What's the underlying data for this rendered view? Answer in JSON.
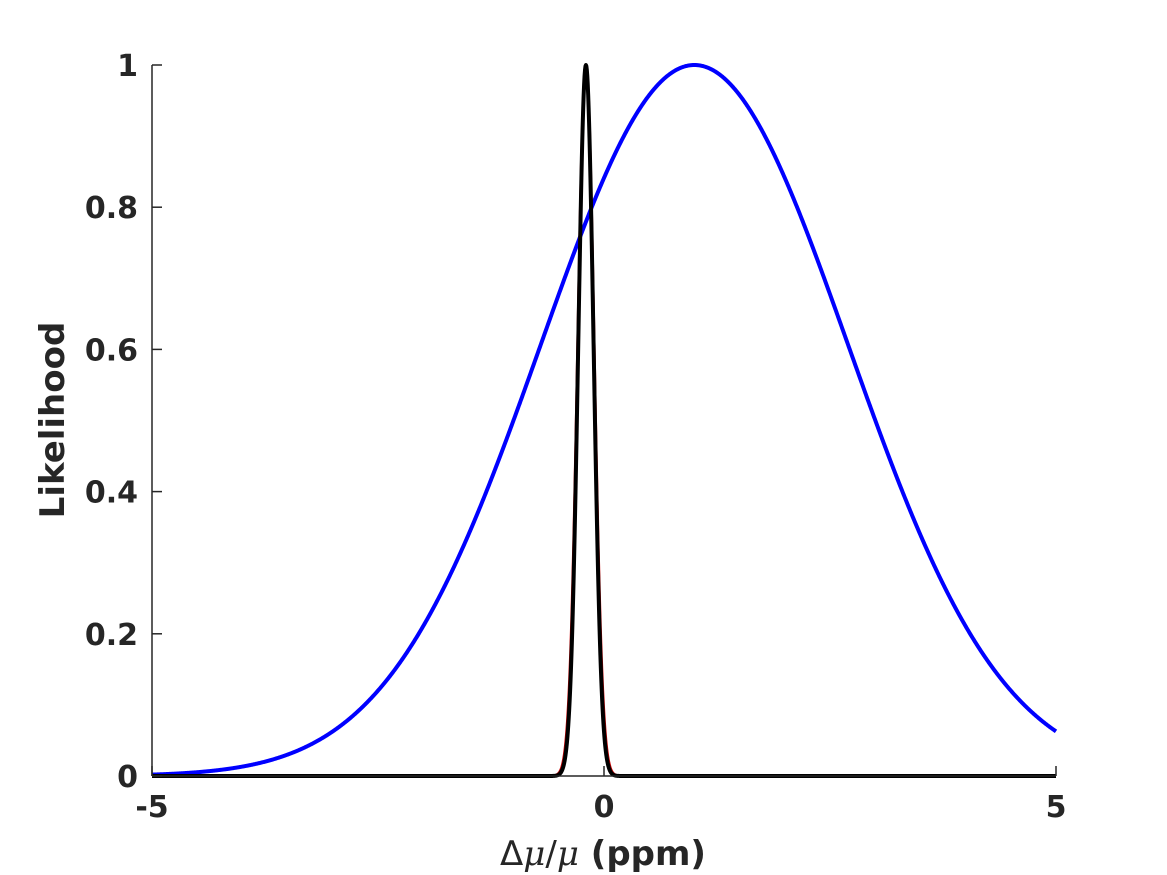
{
  "chart_data": {
    "type": "line",
    "title": "",
    "xlabel_parts": [
      "Δ",
      "μ",
      "/",
      "μ",
      " (ppm)"
    ],
    "ylabel": "Likelihood",
    "xlim": [
      -5,
      5
    ],
    "ylim": [
      0,
      1
    ],
    "xticks": [
      -5,
      0,
      5
    ],
    "xtick_labels": [
      "-5",
      "0",
      "5"
    ],
    "yticks": [
      0,
      0.2,
      0.4,
      0.6,
      0.8,
      1
    ],
    "ytick_labels": [
      "0",
      "0.2",
      "0.4",
      "0.6",
      "0.8",
      "1"
    ],
    "grid": false,
    "series": [
      {
        "color": "#0000ff",
        "shape": "gaussian",
        "center": 1.0,
        "sigma": 1.7,
        "amplitude": 1
      },
      {
        "color": "#cc0000",
        "shape": "gaussian",
        "center": -0.2,
        "sigma": 0.09,
        "amplitude": 1
      },
      {
        "color": "#000000",
        "shape": "gaussian",
        "center": -0.2,
        "sigma": 0.085,
        "amplitude": 1
      }
    ]
  }
}
